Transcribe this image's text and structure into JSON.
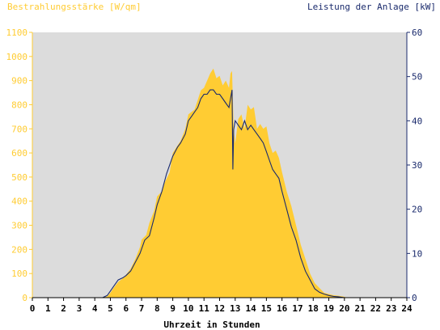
{
  "chart_data": {
    "type": "area",
    "title_left": "Bestrahlungsstärke [W/qm]",
    "title_right": "Leistung der Anlage [kW]",
    "xlabel": "Uhrzeit in Stunden",
    "xlim": [
      0,
      24
    ],
    "x_ticks": [
      "0",
      "1",
      "2",
      "3",
      "4",
      "5",
      "6",
      "7",
      "8",
      "9",
      "10",
      "11",
      "12",
      "13",
      "14",
      "15",
      "16",
      "17",
      "18",
      "19",
      "20",
      "21",
      "22",
      "23",
      "24"
    ],
    "y_left": {
      "lim": [
        0,
        1100
      ],
      "ticks": [
        "0",
        "100",
        "200",
        "300",
        "400",
        "500",
        "600",
        "700",
        "800",
        "900",
        "1000",
        "1100"
      ]
    },
    "y_right": {
      "lim": [
        0,
        60
      ],
      "ticks": [
        "0",
        "10",
        "20",
        "30",
        "40",
        "50",
        "60"
      ]
    },
    "grid": false,
    "colors": {
      "irradiance": "#ffcc33",
      "power": "#1a2a6c",
      "plot_bg": "#dcdcdc",
      "left_axis": "#ffcc33",
      "right_axis": "#1a2a6c"
    },
    "series": [
      {
        "axis": "left",
        "x": [
          0,
          4.5,
          4.8,
          5.0,
          5.2,
          5.5,
          5.8,
          6.0,
          6.3,
          6.6,
          6.9,
          7.0,
          7.3,
          7.5,
          7.8,
          8.0,
          8.3,
          8.5,
          8.8,
          9.0,
          9.3,
          9.5,
          9.8,
          10.0,
          10.2,
          10.4,
          10.6,
          10.8,
          11.0,
          11.2,
          11.4,
          11.6,
          11.8,
          12.0,
          12.2,
          12.4,
          12.6,
          12.7,
          12.8,
          12.9,
          13.0,
          13.2,
          13.4,
          13.6,
          13.8,
          14.0,
          14.2,
          14.4,
          14.6,
          14.8,
          15.0,
          15.2,
          15.4,
          15.6,
          15.8,
          16.0,
          16.3,
          16.6,
          16.9,
          17.2,
          17.5,
          17.8,
          18.1,
          18.4,
          18.7,
          19.0,
          19.3,
          19.6,
          19.9,
          20.2,
          20.4,
          24
        ],
        "values": [
          0,
          0,
          5,
          20,
          40,
          65,
          80,
          95,
          120,
          160,
          210,
          240,
          260,
          310,
          360,
          420,
          440,
          480,
          520,
          600,
          630,
          650,
          700,
          760,
          770,
          780,
          820,
          860,
          870,
          900,
          930,
          950,
          910,
          920,
          880,
          900,
          870,
          930,
          940,
          700,
          640,
          740,
          760,
          700,
          800,
          780,
          790,
          700,
          720,
          700,
          710,
          640,
          600,
          610,
          580,
          520,
          440,
          380,
          300,
          220,
          160,
          100,
          60,
          40,
          20,
          15,
          10,
          8,
          5,
          0,
          0,
          0
        ]
      },
      {
        "axis": "right",
        "x": [
          0,
          4.5,
          4.8,
          5.0,
          5.2,
          5.5,
          5.8,
          6.0,
          6.3,
          6.6,
          6.9,
          7.2,
          7.5,
          7.8,
          8.0,
          8.3,
          8.6,
          9.0,
          9.3,
          9.5,
          9.8,
          10.0,
          10.2,
          10.4,
          10.6,
          10.8,
          11.0,
          11.2,
          11.4,
          11.6,
          11.8,
          12.0,
          12.2,
          12.4,
          12.6,
          12.8,
          12.85,
          12.9,
          13.0,
          13.2,
          13.4,
          13.6,
          13.8,
          14.0,
          14.2,
          14.4,
          14.6,
          14.8,
          15.0,
          15.2,
          15.4,
          15.6,
          15.8,
          16.0,
          16.3,
          16.6,
          16.9,
          17.2,
          17.5,
          17.8,
          18.1,
          18.4,
          18.7,
          19.0,
          19.3,
          19.6,
          20.0,
          20.3,
          20.5,
          24
        ],
        "values": [
          0,
          0,
          0.5,
          1.5,
          2.5,
          4,
          4.5,
          5,
          6,
          8,
          10,
          13,
          14,
          18,
          21,
          24,
          28,
          32,
          34,
          35,
          37,
          40,
          41,
          42,
          43,
          45,
          46,
          46,
          47,
          47,
          46,
          46,
          45,
          44,
          43,
          47,
          29,
          38,
          40,
          39,
          38,
          40,
          38,
          39,
          38,
          37,
          36,
          35,
          33,
          31,
          29,
          28,
          27,
          24,
          20,
          16,
          13,
          9,
          6,
          4,
          2,
          1.2,
          0.8,
          0.5,
          0.3,
          0.2,
          0,
          0,
          0,
          0
        ]
      }
    ]
  }
}
